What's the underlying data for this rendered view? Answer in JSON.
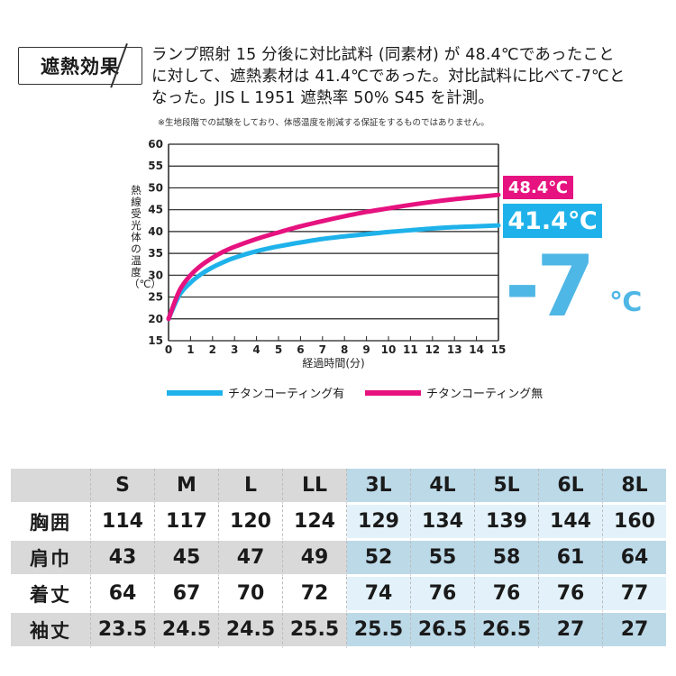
{
  "header": {
    "badge": "遮熱効果",
    "line1": "ランプ照射 15 分後に対比試料 (同素材) が 48.4℃であったこと",
    "line2": "に対して、遮熱素材は 41.4℃であった。対比試料に比べて-7℃と",
    "line3": "なった。JIS L 1951 遮熱率 50% S45 を計測。",
    "note": "※生地段階での試験をしており、体感温度を削減する保証をするものではありません。"
  },
  "colors": {
    "with_coating": "#1fb2ea",
    "without_coating": "#e6127f",
    "blue_shade": "#bcd9e8"
  },
  "chart_data": {
    "type": "line",
    "ylabel": "熱線受光体の温度（℃）",
    "xlabel": "経過時間(分)",
    "xlim": [
      0,
      15
    ],
    "ylim": [
      15,
      60
    ],
    "xticks": [
      "0",
      "1",
      "2",
      "3",
      "4",
      "5",
      "6",
      "7",
      "8",
      "9",
      "10",
      "11",
      "12",
      "13",
      "14",
      "15"
    ],
    "yticks": [
      "15",
      "20",
      "25",
      "30",
      "35",
      "40",
      "45",
      "50",
      "55",
      "60"
    ],
    "grid": "horizontal",
    "legend_position": "bottom",
    "series": [
      {
        "name": "チタンコーティング有",
        "color": "#1fb2ea",
        "x": [
          0,
          0.5,
          1,
          1.5,
          2,
          2.5,
          3,
          4,
          5,
          6,
          7,
          8,
          9,
          10,
          11,
          12,
          13,
          14,
          15
        ],
        "y": [
          20,
          25.5,
          28.3,
          30.3,
          31.8,
          33.0,
          34.0,
          35.5,
          36.6,
          37.5,
          38.3,
          38.9,
          39.4,
          39.9,
          40.3,
          40.7,
          41.0,
          41.2,
          41.4
        ]
      },
      {
        "name": "チタンコーティング無",
        "color": "#e6127f",
        "x": [
          0,
          0.5,
          1,
          1.5,
          2,
          2.5,
          3,
          4,
          5,
          6,
          7,
          8,
          9,
          10,
          11,
          12,
          13,
          14,
          15
        ],
        "y": [
          20,
          26.5,
          30.0,
          32.3,
          34.0,
          35.4,
          36.5,
          38.3,
          39.8,
          41.2,
          42.4,
          43.5,
          44.5,
          45.3,
          46.1,
          46.8,
          47.4,
          47.9,
          48.4
        ]
      }
    ],
    "annotations": {
      "without_value": "48.4℃",
      "with_value": "41.4℃",
      "difference": "-7",
      "difference_unit": "℃"
    }
  },
  "size_table": {
    "corner": "",
    "sizes": [
      "S",
      "M",
      "L",
      "LL",
      "3L",
      "4L",
      "5L",
      "6L",
      "8L"
    ],
    "rows": [
      {
        "label": "胸囲",
        "values": [
          "114",
          "117",
          "120",
          "124",
          "129",
          "134",
          "139",
          "144",
          "160"
        ]
      },
      {
        "label": "肩巾",
        "values": [
          "43",
          "45",
          "47",
          "49",
          "52",
          "55",
          "58",
          "61",
          "64"
        ]
      },
      {
        "label": "着丈",
        "values": [
          "64",
          "67",
          "70",
          "72",
          "74",
          "76",
          "76",
          "76",
          "77"
        ]
      },
      {
        "label": "袖丈",
        "values": [
          "23.5",
          "24.5",
          "24.5",
          "25.5",
          "25.5",
          "26.5",
          "26.5",
          "27",
          "27"
        ]
      }
    ]
  }
}
